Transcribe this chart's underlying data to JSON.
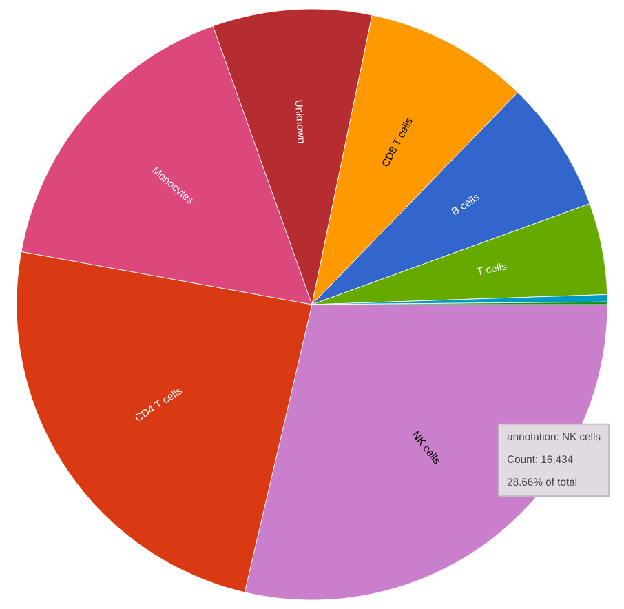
{
  "chart_data": {
    "type": "pie",
    "categories": [
      "NK cells",
      "CD4 T cells",
      "Monocytes",
      "Unknown",
      "CD8 T cells",
      "B cells",
      "T cells",
      null,
      null
    ],
    "values": [
      28.66,
      24.2,
      16.7,
      8.7,
      9.0,
      7.2,
      5.0,
      0.4,
      0.14
    ],
    "colors": [
      "#c97fcc",
      "#d93a14",
      "#dc477c",
      "#b52d30",
      "#fe9900",
      "#3366cc",
      "#66aa00",
      "#0099c6",
      "#109618"
    ],
    "annotations": [
      "annotation: NK cells\n\nCount: 16,434\n\n28.66% of total"
    ]
  }
}
